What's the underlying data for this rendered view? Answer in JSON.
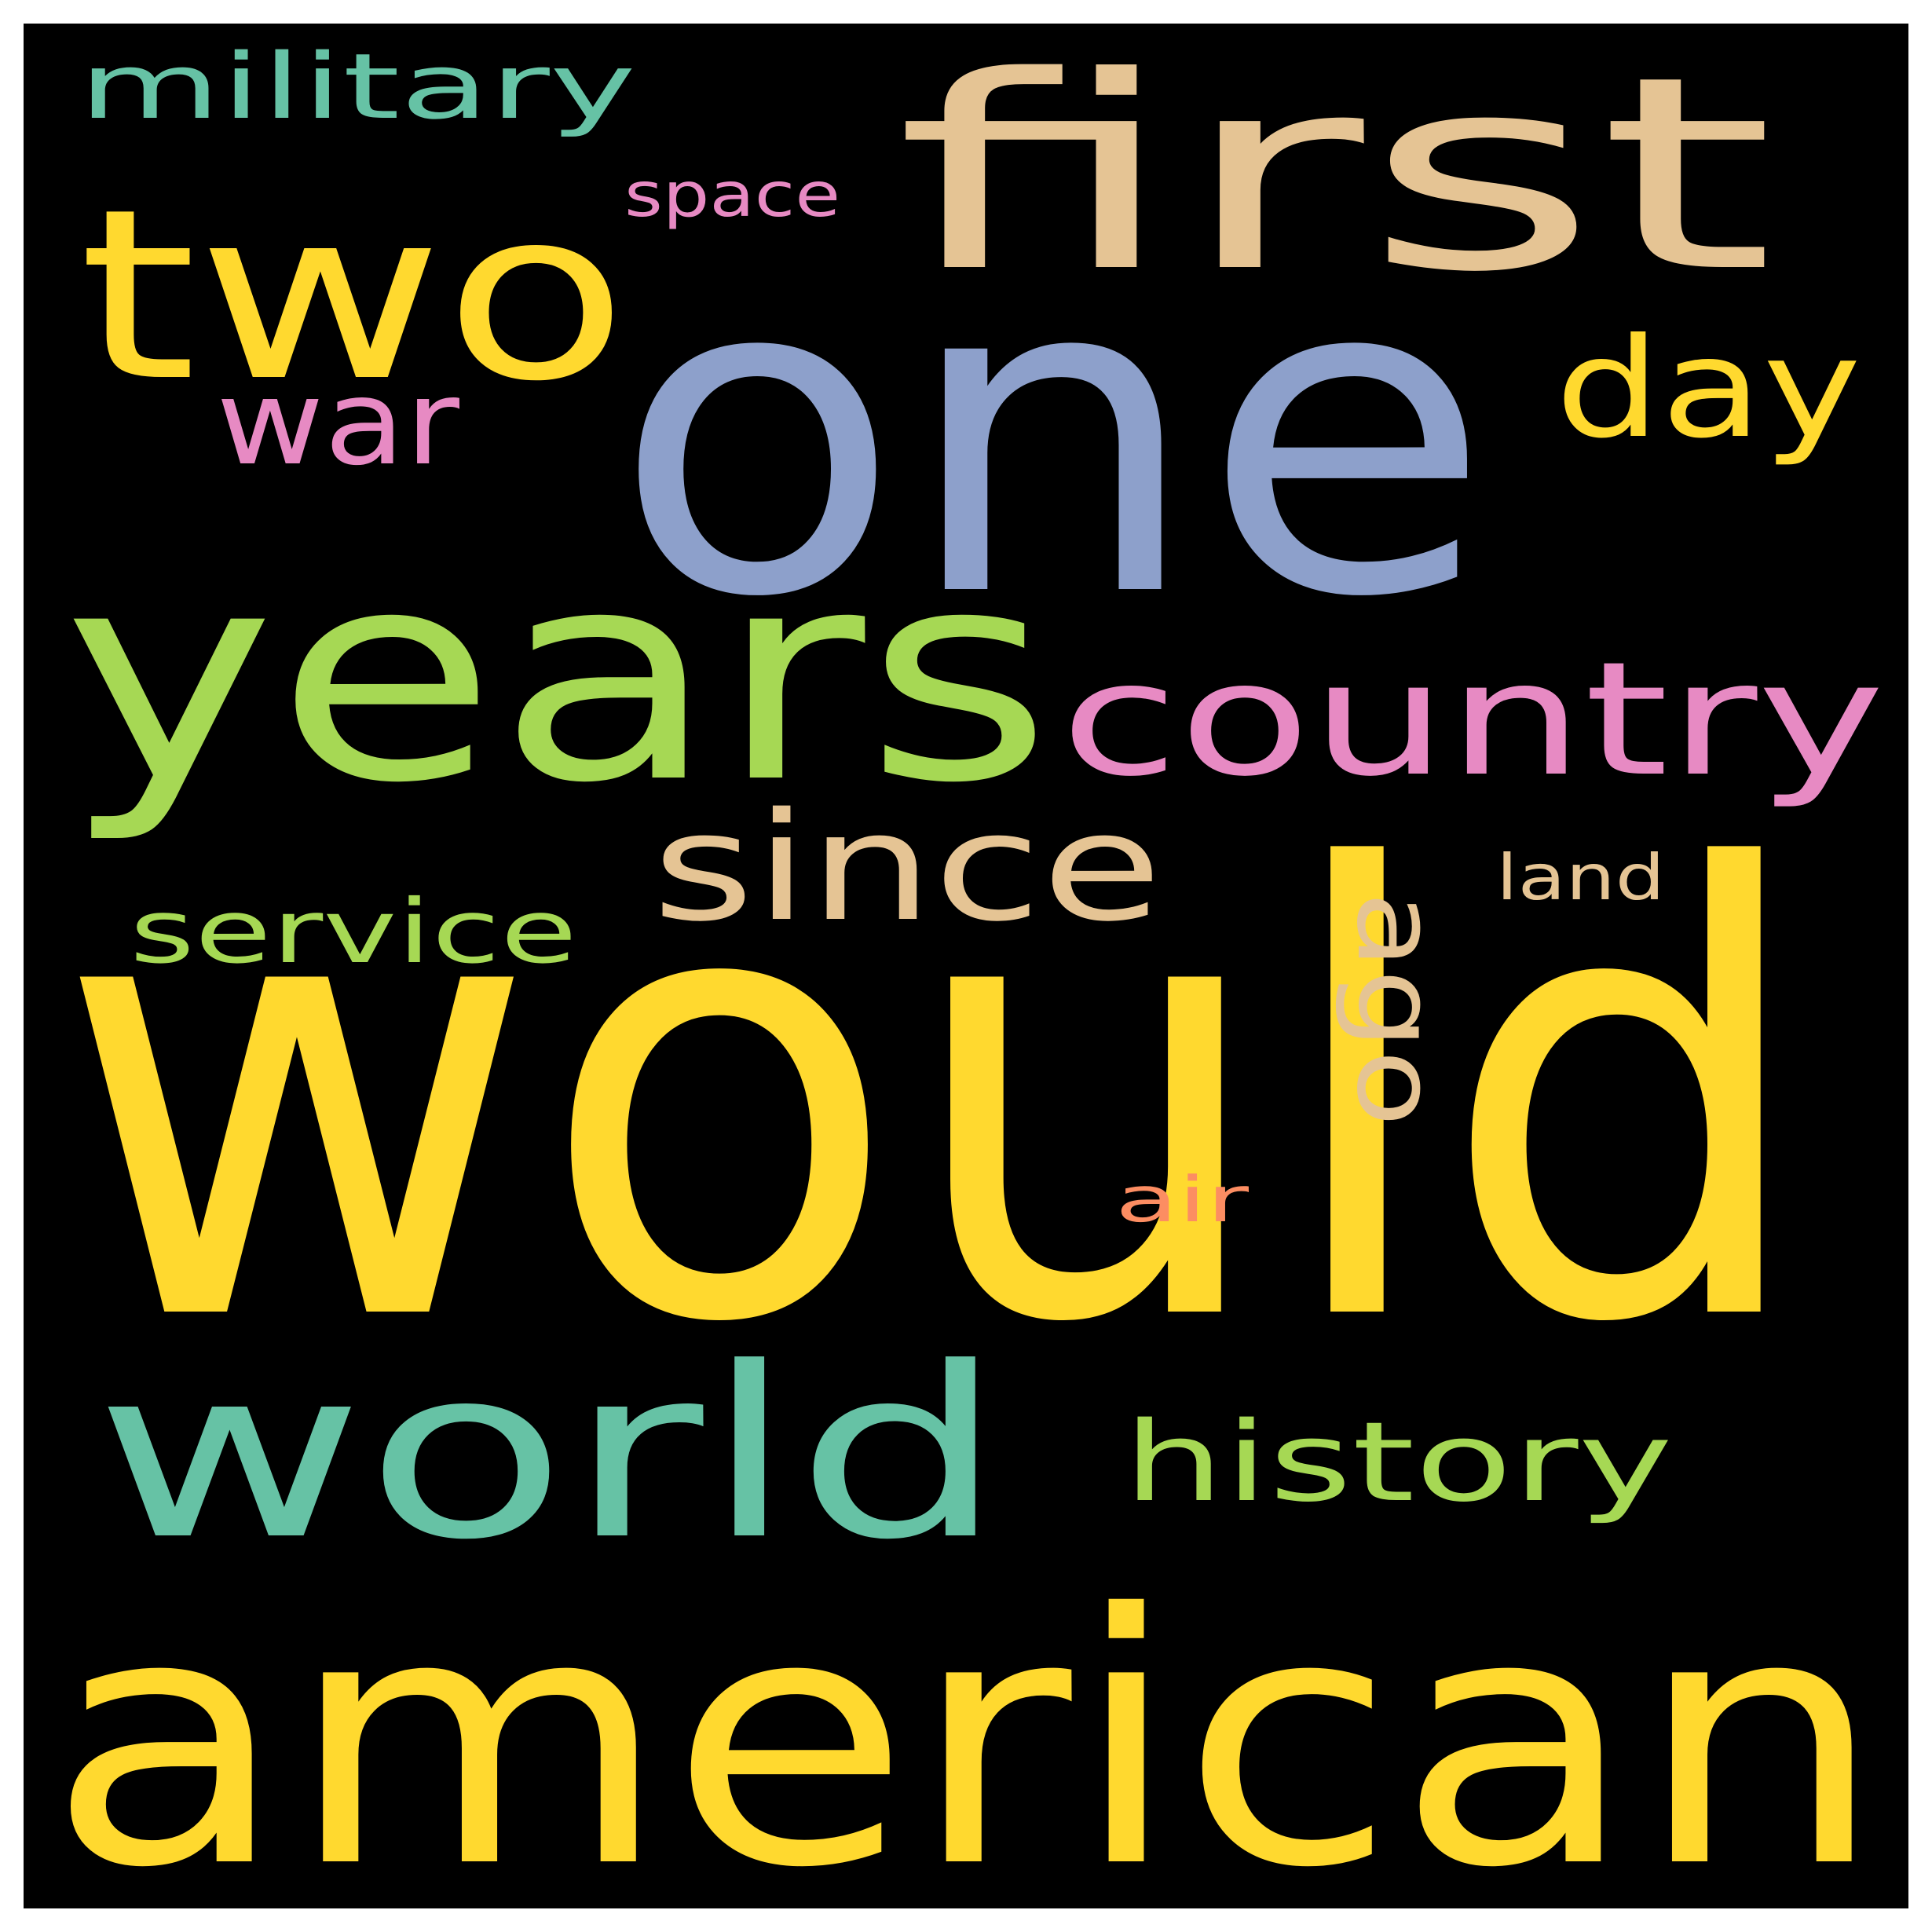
{
  "background_color": "#000000",
  "words": [
    {
      "text": "would",
      "color": "#ffd92f",
      "orientation": "horizontal"
    },
    {
      "text": "one",
      "color": "#8da0cb",
      "orientation": "horizontal"
    },
    {
      "text": "american",
      "color": "#ffd92f",
      "orientation": "horizontal"
    },
    {
      "text": "years",
      "color": "#a6d854",
      "orientation": "horizontal"
    },
    {
      "text": "first",
      "color": "#e5c494",
      "orientation": "horizontal"
    },
    {
      "text": "two",
      "color": "#ffd92f",
      "orientation": "horizontal"
    },
    {
      "text": "world",
      "color": "#66c2a5",
      "orientation": "horizontal"
    },
    {
      "text": "country",
      "color": "#e78ac3",
      "orientation": "horizontal"
    },
    {
      "text": "since",
      "color": "#e5c494",
      "orientation": "horizontal"
    },
    {
      "text": "day",
      "color": "#ffd92f",
      "orientation": "horizontal"
    },
    {
      "text": "history",
      "color": "#a6d854",
      "orientation": "horizontal"
    },
    {
      "text": "war",
      "color": "#e78ac3",
      "orientation": "horizontal"
    },
    {
      "text": "military",
      "color": "#66c2a5",
      "orientation": "horizontal"
    },
    {
      "text": "service",
      "color": "#a6d854",
      "orientation": "horizontal"
    },
    {
      "text": "ago",
      "color": "#e5c494",
      "orientation": "vertical"
    },
    {
      "text": "space",
      "color": "#e78ac3",
      "orientation": "horizontal"
    },
    {
      "text": "land",
      "color": "#e5c494",
      "orientation": "horizontal"
    },
    {
      "text": "air",
      "color": "#fc8d62",
      "orientation": "horizontal"
    }
  ]
}
